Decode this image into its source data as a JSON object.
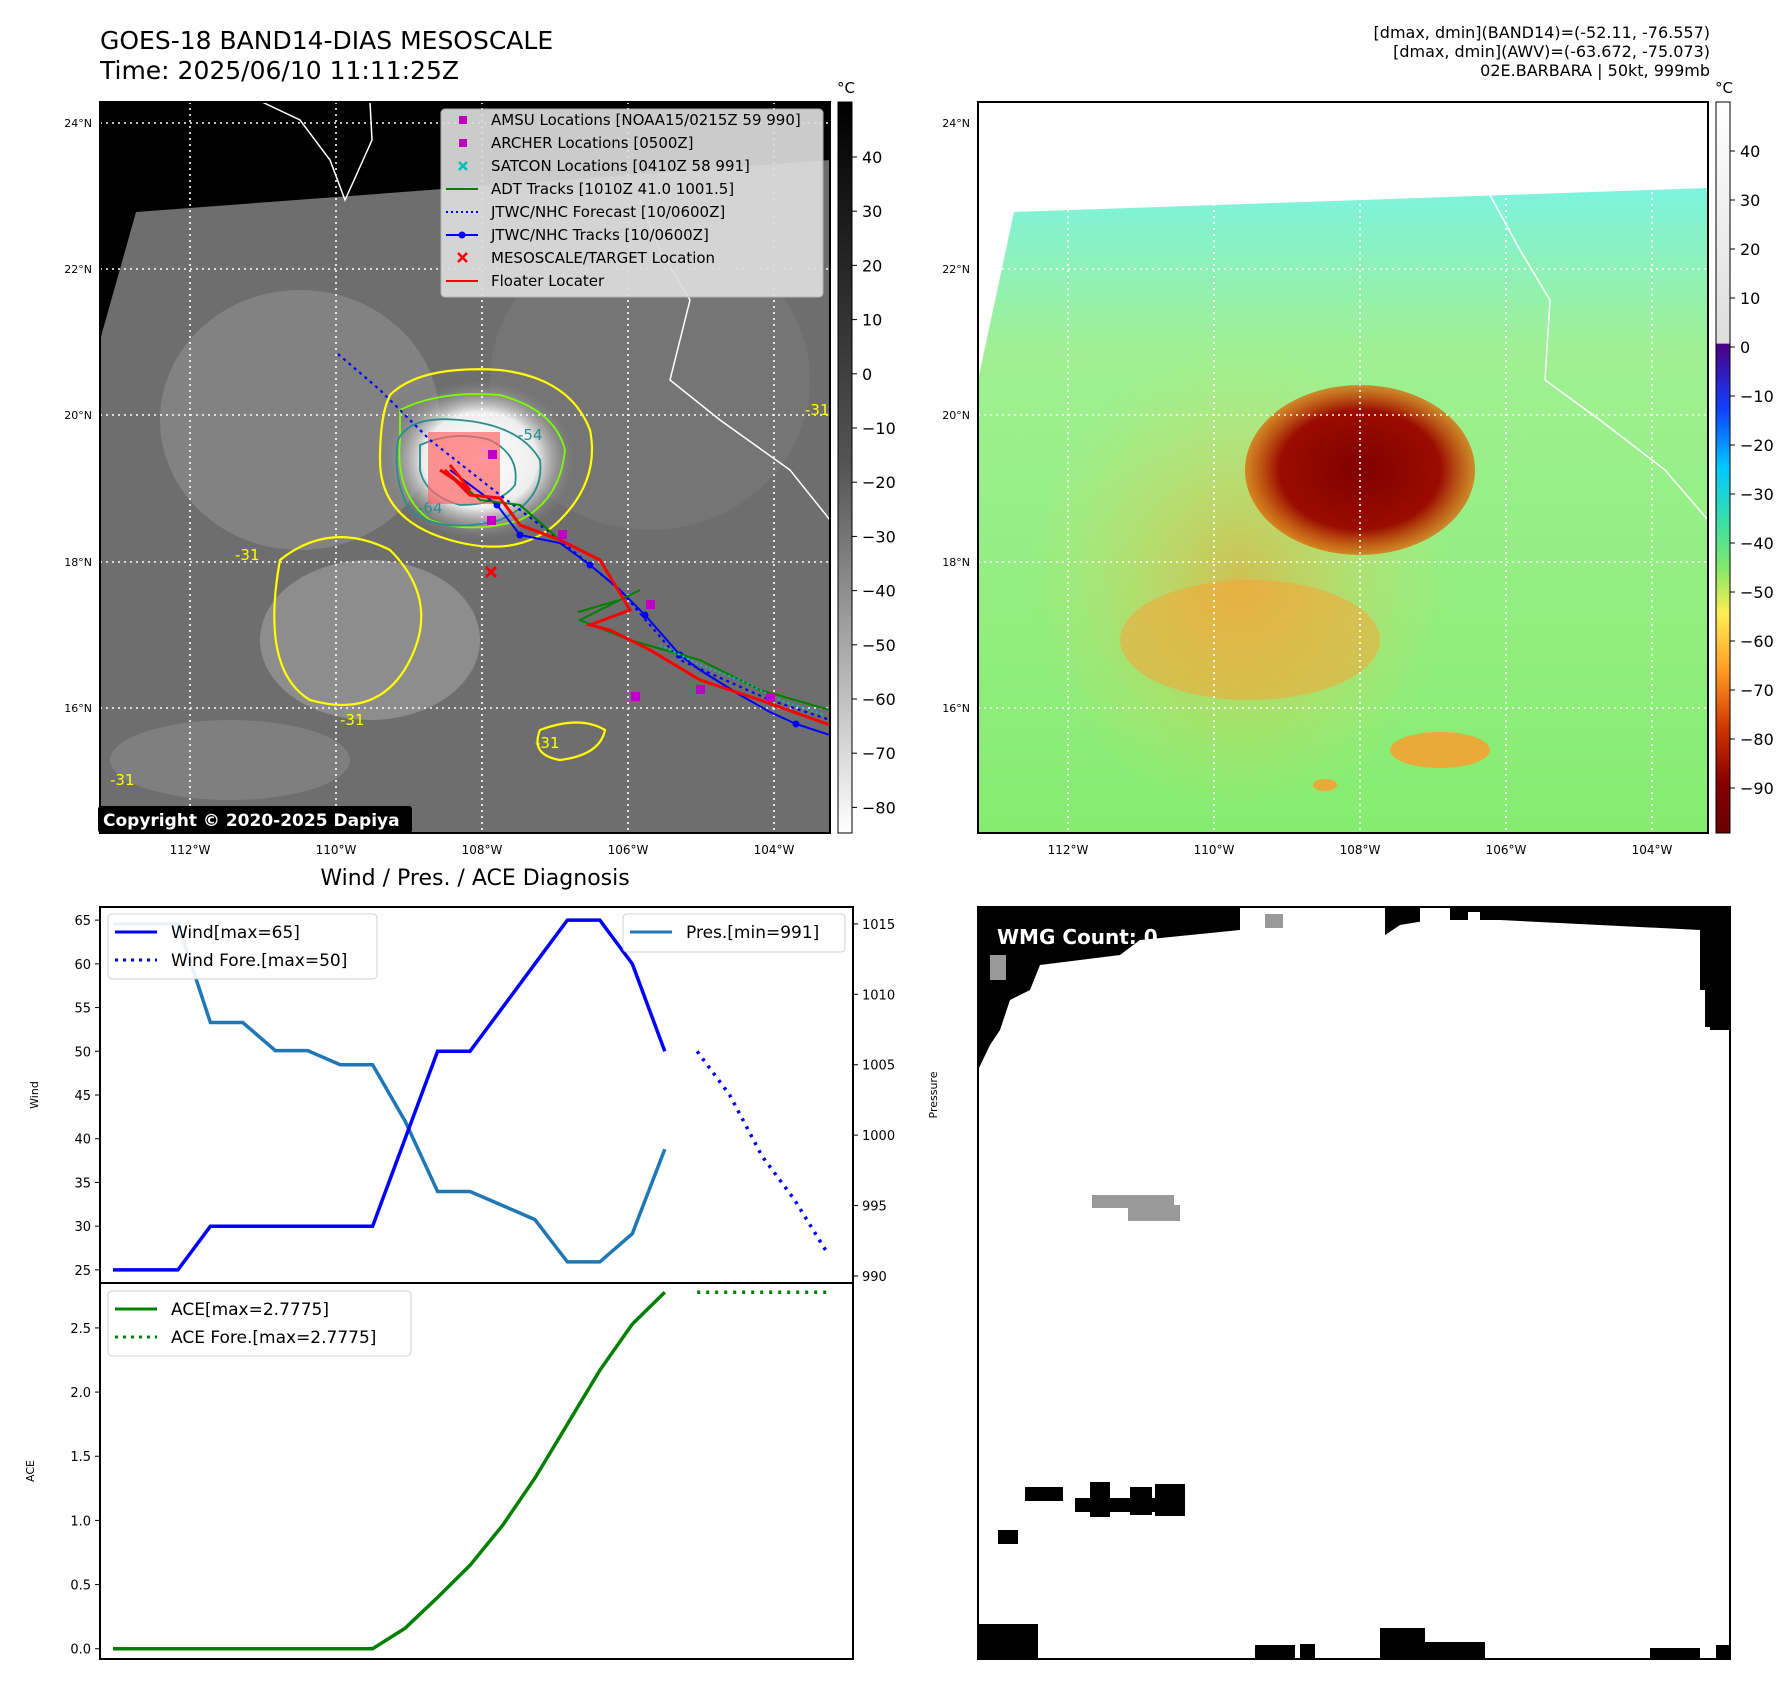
{
  "header": {
    "title": "GOES-18 BAND14-DIAS MESOSCALE",
    "time": "Time: 2025/06/10 11:11:25Z",
    "info_lines": [
      "[dmax, dmin](BAND14)=(-52.11, -76.557)",
      "[dmax, dmin](AWV)=(-63.672, -75.073)",
      "02E.BARBARA | 50kt, 999mb"
    ]
  },
  "copyright": "Copyright © 2020-2025 Dapiya",
  "map": {
    "lat_labels": [
      "24°N",
      "22°N",
      "20°N",
      "18°N",
      "16°N"
    ],
    "lon_labels": [
      "112°W",
      "110°W",
      "108°W",
      "106°W",
      "104°W"
    ],
    "contour_labels": [
      "-64",
      "-54",
      "-31",
      "-31",
      "-31",
      "-31",
      "-31"
    ]
  },
  "colors": {
    "yellow_contour": "#ffff00",
    "green_contour": "#7cfc00",
    "teal_contour": "#2a8c8c",
    "forecast_blue": "#0000ff",
    "floater_red": "#ff0000",
    "amsu_magenta": "#c000c0",
    "satcon_cyan": "#00c0c0",
    "adt_green": "#008000",
    "pressure_line": "#1f77b4",
    "ace_green": "#008000"
  },
  "legend": [
    {
      "label": "AMSU Locations [NOAA15/0215Z 59 990]",
      "icon": "magenta-square"
    },
    {
      "label": "ARCHER Locations [0500Z]",
      "icon": "magenta-square"
    },
    {
      "label": "SATCON Locations [0410Z 58 991]",
      "icon": "cyan-x"
    },
    {
      "label": "ADT Tracks [1010Z 41.0 1001.5]",
      "icon": "green-line"
    },
    {
      "label": "JTWC/NHC Forecast [10/0600Z]",
      "icon": "blue-dotted-line"
    },
    {
      "label": "JTWC/NHC Tracks [10/0600Z]",
      "icon": "blue-line-dots"
    },
    {
      "label": "MESOSCALE/TARGET Location",
      "icon": "red-x"
    },
    {
      "label": "Floater Locater",
      "icon": "red-line"
    }
  ],
  "colorbar_left": {
    "unit": "°C",
    "ticks": [
      "40",
      "30",
      "20",
      "10",
      "0",
      "−10",
      "−20",
      "−30",
      "−40",
      "−50",
      "−60",
      "−70",
      "−80"
    ]
  },
  "colorbar_right": {
    "unit": "°C",
    "ticks": [
      "40",
      "30",
      "20",
      "10",
      "0",
      "−10",
      "−20",
      "−30",
      "−40",
      "−50",
      "−60",
      "−70",
      "−80",
      "−90"
    ]
  },
  "wmg_label": "WMG Count: 0",
  "chart_data": [
    {
      "type": "line",
      "title": "Wind / Pres. / ACE Diagnosis",
      "ylabel": "Wind",
      "y2label": "Pressure",
      "ylim": [
        23.5,
        66.5
      ],
      "y2lim": [
        989.5,
        1016.2
      ],
      "yticks": [
        "65",
        "60",
        "55",
        "50",
        "45",
        "40",
        "35",
        "30",
        "25"
      ],
      "y2ticks": [
        "1015",
        "1010",
        "1005",
        "1000",
        "995",
        "990"
      ],
      "legend": [
        "Wind[max=65]",
        "Wind Fore.[max=50]"
      ],
      "legend2": [
        "Pres.[min=991]"
      ],
      "x": [
        0,
        1,
        2,
        3,
        4,
        5,
        6,
        7,
        8,
        9,
        10,
        11,
        12,
        13,
        14,
        15,
        16,
        17,
        18,
        19,
        20,
        21,
        22
      ],
      "series": [
        {
          "name": "Wind[max=65]",
          "style": "solid",
          "x": [
            0,
            1,
            2,
            3,
            4,
            5,
            6,
            7,
            8,
            9,
            10,
            11,
            12,
            13,
            14,
            15,
            16,
            17,
            18,
            19
          ],
          "values": [
            25,
            25,
            25,
            30,
            30,
            30,
            30,
            30,
            30,
            40,
            50,
            50,
            55,
            60,
            65,
            65,
            60,
            50,
            null,
            null
          ]
        },
        {
          "name": "Wind Fore.[max=50]",
          "style": "dotted",
          "x": [
            18,
            19,
            20,
            21,
            22
          ],
          "values": [
            50,
            45,
            38,
            33,
            27
          ]
        },
        {
          "name": "Pres.[min=991]",
          "style": "solid",
          "axis": "right",
          "x": [
            0,
            1,
            2,
            3,
            4,
            5,
            6,
            7,
            8,
            9,
            10,
            11,
            12,
            13,
            14,
            15,
            16,
            17
          ],
          "values": [
            1015,
            1015,
            1015,
            1008,
            1008,
            1006,
            1006,
            1005,
            1005,
            1001,
            996,
            996,
            995,
            994,
            991,
            991,
            993,
            999
          ]
        }
      ]
    },
    {
      "type": "line",
      "ylabel": "ACE",
      "ylim": [
        -0.08,
        2.85
      ],
      "yticks": [
        "2.5",
        "2.0",
        "1.5",
        "1.0",
        "0.5",
        "0.0"
      ],
      "legend": [
        "ACE[max=2.7775]",
        "ACE Fore.[max=2.7775]"
      ],
      "series": [
        {
          "name": "ACE[max=2.7775]",
          "style": "solid",
          "x": [
            0,
            1,
            2,
            3,
            4,
            5,
            6,
            7,
            8,
            9,
            10,
            11,
            12,
            13,
            14,
            15,
            16,
            17,
            18
          ],
          "values": [
            0,
            0,
            0,
            0,
            0,
            0,
            0,
            0,
            0,
            0.16,
            0.4,
            0.65,
            0.96,
            1.33,
            1.75,
            2.17,
            2.53,
            2.7775,
            null
          ]
        },
        {
          "name": "ACE Fore.[max=2.7775]",
          "style": "dotted",
          "x": [
            18,
            19,
            20,
            21,
            22
          ],
          "values": [
            2.7775,
            2.7775,
            2.7775,
            2.7775,
            2.7775
          ]
        }
      ]
    }
  ]
}
